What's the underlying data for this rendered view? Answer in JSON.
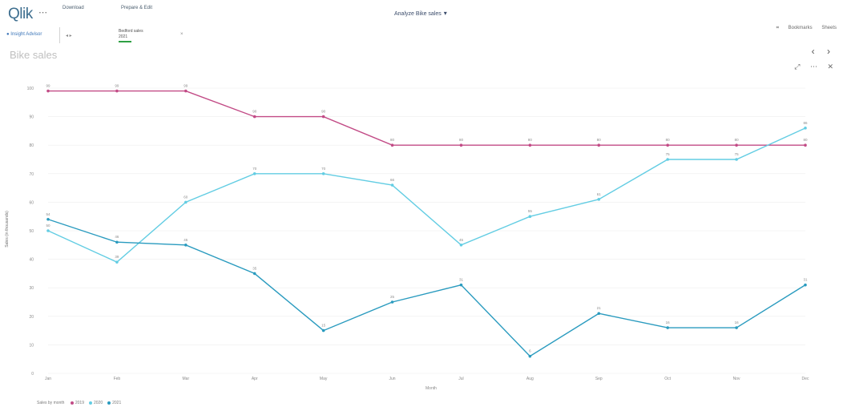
{
  "app": {
    "logo": "Qlik",
    "nav_icon": "menu-icon",
    "nav_cols": [
      {
        "label": "",
        "value": "Download"
      },
      {
        "label": "",
        "value": "Prepare & Edit"
      }
    ],
    "sheet_selector_title": "Analyze Bike sales",
    "right_tools": [
      "Bookmarks",
      "Sheets"
    ]
  },
  "selection": {
    "insight_label": "Insight Advisor",
    "filter_title": "Bedford sales",
    "filter_value": "2021"
  },
  "sheet": {
    "title": "Bike sales",
    "prev": "‹",
    "next": "›"
  },
  "obj_tools": [
    "expand-icon",
    "more-icon",
    "close-icon"
  ],
  "colors": {
    "teal_dark": "#2a9bbf",
    "teal_light": "#63cde3",
    "magenta": "#c24b86",
    "grid": "#eeeeee"
  },
  "chart_data": {
    "type": "line",
    "title": "",
    "xlabel": "Month",
    "ylabel": "Sales (in thousands)",
    "ylim": [
      0,
      100
    ],
    "categories": [
      "Jan",
      "Feb",
      "Mar",
      "Apr",
      "May",
      "Jun",
      "Jul",
      "Aug",
      "Sep",
      "Oct",
      "Nov",
      "Dec"
    ],
    "series": [
      {
        "name": "2019",
        "color": "#c24b86",
        "values": [
          99,
          99,
          99,
          90,
          90,
          80,
          80,
          80,
          80,
          80,
          80,
          80
        ]
      },
      {
        "name": "2020",
        "color": "#63cde3",
        "values": [
          50,
          39,
          60,
          70,
          70,
          66,
          45,
          55,
          61,
          75,
          75,
          86
        ]
      },
      {
        "name": "2021",
        "color": "#2a9bbf",
        "values": [
          54,
          46,
          45,
          35,
          15,
          25,
          31,
          6,
          21,
          16,
          16,
          31
        ]
      }
    ]
  },
  "legend_title": "Sales by month"
}
